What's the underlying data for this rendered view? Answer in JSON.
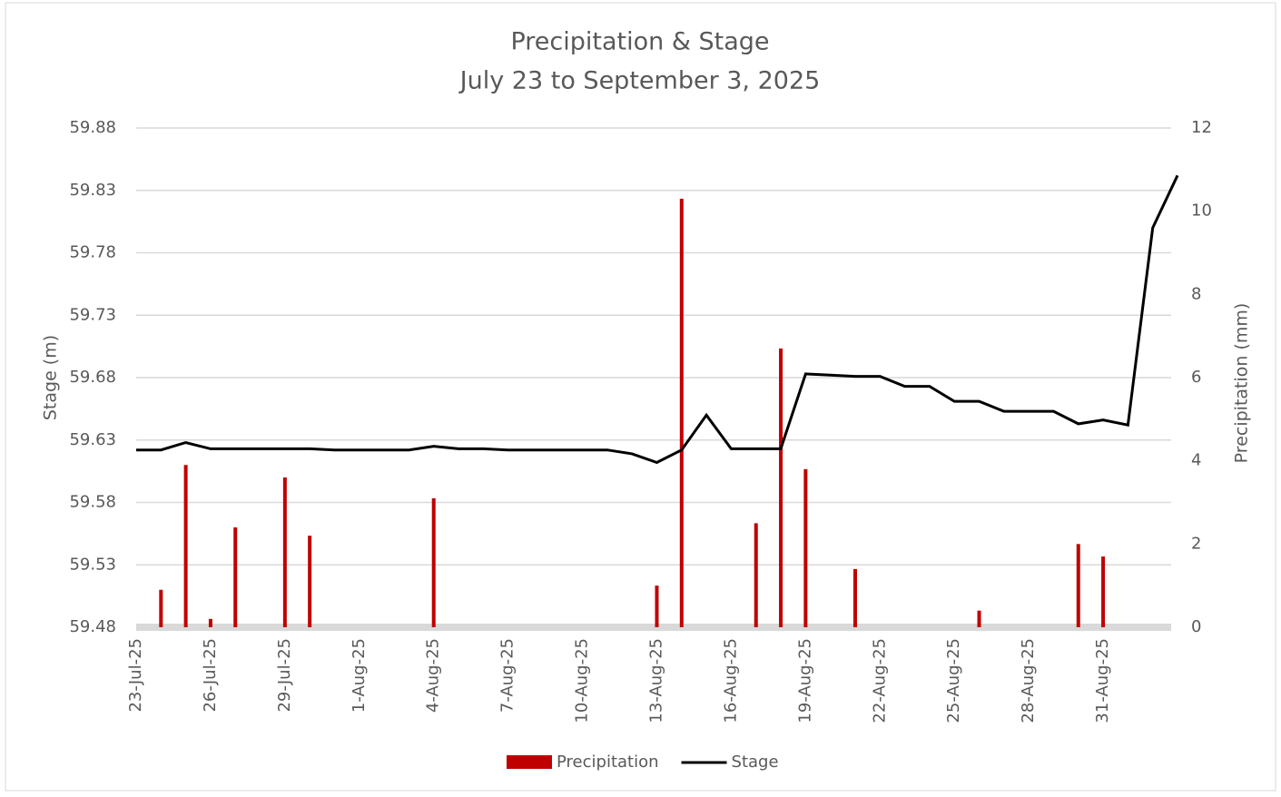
{
  "chart_data": {
    "type": "bar-line",
    "title": "Precipitation & Stage",
    "subtitle": "July 23 to September 3, 2025",
    "y_label": "Stage (m)",
    "y2_label": "Precipitation (mm)",
    "x": [
      "2025-07-23",
      "2025-07-24",
      "2025-07-25",
      "2025-07-26",
      "2025-07-27",
      "2025-07-28",
      "2025-07-29",
      "2025-07-30",
      "2025-07-31",
      "2025-08-01",
      "2025-08-02",
      "2025-08-03",
      "2025-08-04",
      "2025-08-05",
      "2025-08-06",
      "2025-08-07",
      "2025-08-08",
      "2025-08-09",
      "2025-08-10",
      "2025-08-11",
      "2025-08-12",
      "2025-08-13",
      "2025-08-14",
      "2025-08-15",
      "2025-08-16",
      "2025-08-17",
      "2025-08-18",
      "2025-08-19",
      "2025-08-20",
      "2025-08-21",
      "2025-08-22",
      "2025-08-23",
      "2025-08-24",
      "2025-08-25",
      "2025-08-26",
      "2025-08-27",
      "2025-08-28",
      "2025-08-29",
      "2025-08-30",
      "2025-08-31",
      "2025-09-01",
      "2025-09-02",
      "2025-09-03"
    ],
    "series": [
      {
        "name": "Precipitation",
        "color": "#c00000",
        "axis": "y2",
        "kind": "bar",
        "values": [
          0,
          0.9,
          3.9,
          0.2,
          2.4,
          0,
          3.6,
          2.2,
          0,
          0,
          0,
          0,
          3.1,
          0,
          0,
          0,
          0,
          0,
          0,
          0,
          0,
          1.0,
          10.3,
          0,
          0,
          2.5,
          6.7,
          3.8,
          0,
          1.4,
          0,
          0,
          0,
          0,
          0.4,
          0,
          0,
          0,
          2.0,
          1.7,
          0,
          0,
          0
        ]
      },
      {
        "name": "Stage",
        "color": "#000000",
        "axis": "y",
        "kind": "line",
        "values": [
          59.622,
          59.622,
          59.628,
          59.623,
          59.623,
          59.623,
          59.623,
          59.623,
          59.622,
          59.622,
          59.622,
          59.622,
          59.625,
          59.623,
          59.623,
          59.622,
          59.622,
          59.622,
          59.622,
          59.622,
          59.619,
          59.612,
          59.622,
          59.65,
          59.623,
          59.623,
          59.623,
          59.683,
          59.682,
          59.681,
          59.681,
          59.673,
          59.673,
          59.661,
          59.661,
          59.653,
          59.653,
          59.653,
          59.643,
          59.646,
          59.642,
          59.8,
          59.842
        ]
      }
    ],
    "xlim": [
      "2025-07-23",
      "2025-09-03"
    ],
    "xticks": [
      {
        "value": "2025-07-23",
        "label": "23-Jul-25"
      },
      {
        "value": "2025-07-26",
        "label": "26-Jul-25"
      },
      {
        "value": "2025-07-29",
        "label": "29-Jul-25"
      },
      {
        "value": "2025-08-01",
        "label": "1-Aug-25"
      },
      {
        "value": "2025-08-04",
        "label": "4-Aug-25"
      },
      {
        "value": "2025-08-07",
        "label": "7-Aug-25"
      },
      {
        "value": "2025-08-10",
        "label": "10-Aug-25"
      },
      {
        "value": "2025-08-13",
        "label": "13-Aug-25"
      },
      {
        "value": "2025-08-16",
        "label": "16-Aug-25"
      },
      {
        "value": "2025-08-19",
        "label": "19-Aug-25"
      },
      {
        "value": "2025-08-22",
        "label": "22-Aug-25"
      },
      {
        "value": "2025-08-25",
        "label": "25-Aug-25"
      },
      {
        "value": "2025-08-28",
        "label": "28-Aug-25"
      },
      {
        "value": "2025-08-31",
        "label": "31-Aug-25"
      }
    ],
    "ylim": [
      59.48,
      59.88
    ],
    "yticks": [
      59.48,
      59.53,
      59.58,
      59.63,
      59.68,
      59.73,
      59.78,
      59.83,
      59.88
    ],
    "y2lim": [
      0,
      12
    ],
    "y2ticks": [
      0,
      2,
      4,
      6,
      8,
      10,
      12
    ],
    "grid": true,
    "legend": "bottom"
  }
}
